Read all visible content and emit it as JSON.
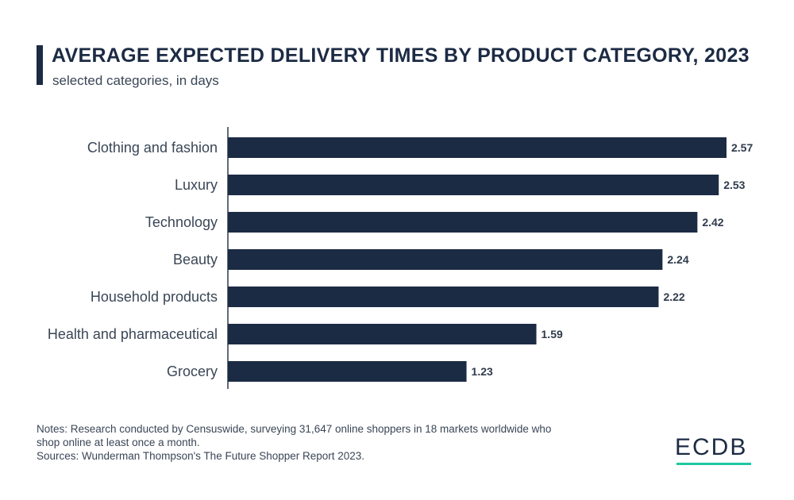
{
  "header": {
    "title": "AVERAGE EXPECTED DELIVERY TIMES BY PRODUCT CATEGORY, 2023",
    "subtitle": "selected categories, in days"
  },
  "chart_data": {
    "type": "bar",
    "orientation": "horizontal",
    "title": "AVERAGE EXPECTED DELIVERY TIMES BY PRODUCT CATEGORY, 2023",
    "subtitle": "selected categories, in days",
    "categories": [
      "Clothing and fashion",
      "Luxury",
      "Technology",
      "Beauty",
      "Household products",
      "Health and pharmaceutical",
      "Grocery"
    ],
    "values": [
      2.57,
      2.53,
      2.42,
      2.24,
      2.22,
      1.59,
      1.23
    ],
    "value_labels": [
      "2.57",
      "2.53",
      "2.42",
      "2.24",
      "2.22",
      "1.59",
      "1.23"
    ],
    "xlim": [
      0,
      2.57
    ],
    "xlabel": "",
    "ylabel": "",
    "grid": false,
    "bar_color": "#1c2b44"
  },
  "footer": {
    "notes_line1": "Notes: Research conducted by Censuswide, surveying 31,647 online shoppers in 18 markets worldwide who",
    "notes_line2": "shop online at least once a month.",
    "sources": "Sources: Wunderman Thompson's The Future Shopper Report 2023.",
    "logo": "ECDB"
  },
  "colors": {
    "primary": "#1c2b44",
    "accent": "#1ec8a0",
    "text": "#3a4656"
  }
}
